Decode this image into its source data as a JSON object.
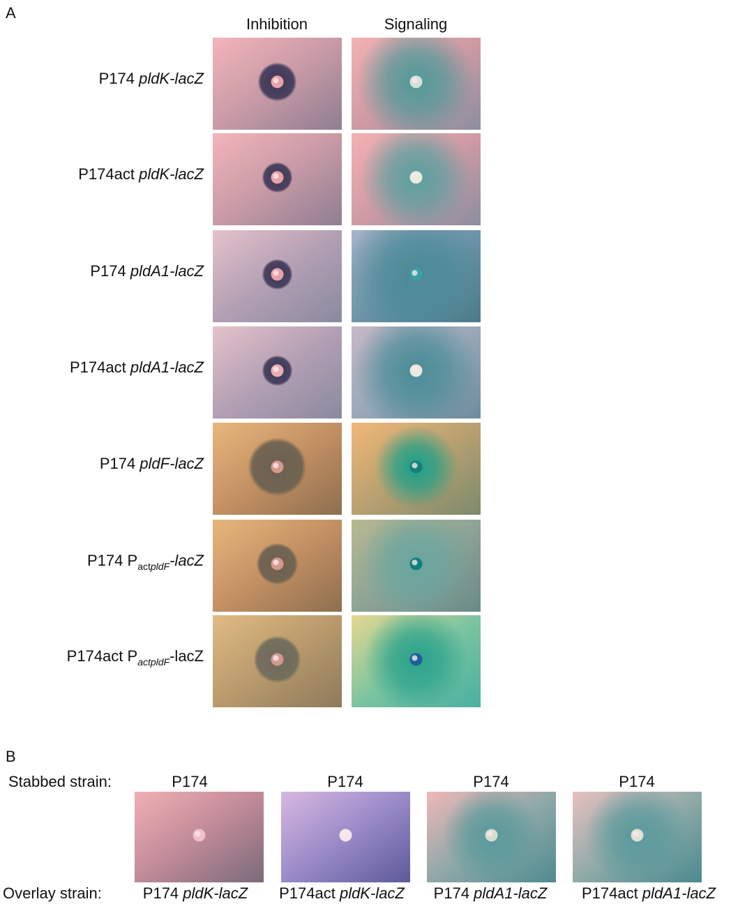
{
  "panel_a": {
    "label": "A",
    "columns": [
      "Inhibition",
      "Signaling"
    ],
    "rows": [
      [
        {
          "text": "P174 ",
          "style": "normal"
        },
        {
          "text": "pldK-lacZ",
          "style": "italic"
        }
      ],
      [
        {
          "text": "P174act ",
          "style": "normal"
        },
        {
          "text": "pldK-lacZ",
          "style": "italic"
        }
      ],
      [
        {
          "text": "P174 ",
          "style": "normal"
        },
        {
          "text": "pldA1-lacZ",
          "style": "italic"
        }
      ],
      [
        {
          "text": "P174act ",
          "style": "normal"
        },
        {
          "text": "pldA1-lacZ",
          "style": "italic"
        }
      ],
      [
        {
          "text": "P174 ",
          "style": "normal"
        },
        {
          "text": "pldF-lacZ",
          "style": "italic"
        }
      ],
      [
        {
          "text": "P174 P",
          "style": "normal"
        },
        {
          "text": "act",
          "style": "sub"
        },
        {
          "text": "pldF",
          "style": "sub-italic"
        },
        {
          "text": "-lacZ",
          "style": "italic"
        }
      ],
      [
        {
          "text": "P174act P",
          "style": "normal"
        },
        {
          "text": "actpldF",
          "style": "sub-italic"
        },
        {
          "text": "-lacZ",
          "style": "normal"
        }
      ]
    ]
  },
  "panel_b": {
    "label": "B",
    "stabbed_label": "Stabbed strain:",
    "overlay_label": "Overlay strain:",
    "stabbed": [
      "P174",
      "P174",
      "P174",
      "P174"
    ],
    "overlay": [
      [
        {
          "text": "P174 ",
          "style": "normal"
        },
        {
          "text": "pldK-lacZ",
          "style": "italic"
        }
      ],
      [
        {
          "text": "P174act ",
          "style": "normal"
        },
        {
          "text": "pldK-lacZ",
          "style": "italic"
        }
      ],
      [
        {
          "text": "P174 ",
          "style": "normal"
        },
        {
          "text": "pldA1-lacZ",
          "style": "italic"
        }
      ],
      [
        {
          "text": "P174act ",
          "style": "normal"
        },
        {
          "text": "pldA1-lacZ",
          "style": "italic"
        }
      ]
    ]
  }
}
